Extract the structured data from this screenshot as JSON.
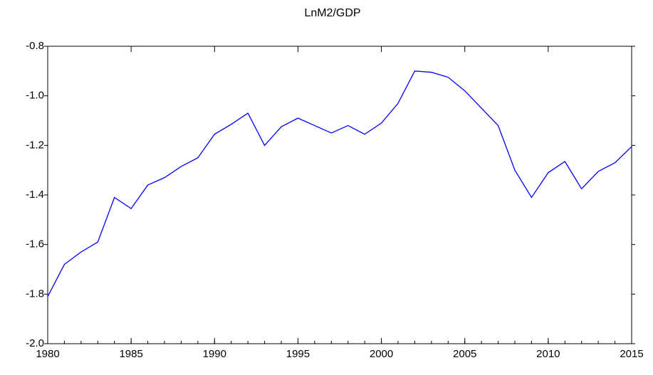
{
  "chart_data": {
    "type": "line",
    "title": "LnM2/GDP",
    "x": [
      1980,
      1981,
      1982,
      1983,
      1984,
      1985,
      1986,
      1987,
      1988,
      1989,
      1990,
      1991,
      1992,
      1993,
      1994,
      1995,
      1996,
      1997,
      1998,
      1999,
      2000,
      2001,
      2002,
      2003,
      2004,
      2005,
      2006,
      2007,
      2008,
      2009,
      2010,
      2011,
      2012,
      2013,
      2014,
      2015
    ],
    "series": [
      {
        "color": "#0000ff",
        "values": [
          -1.81,
          -1.68,
          -1.63,
          -1.59,
          -1.41,
          -1.455,
          -1.36,
          -1.33,
          -1.285,
          -1.25,
          -1.155,
          -1.115,
          -1.07,
          -1.2,
          -1.125,
          -1.09,
          -1.12,
          -1.15,
          -1.12,
          -1.155,
          -1.11,
          -1.03,
          -0.9,
          -0.905,
          -0.925,
          -0.98,
          -1.05,
          -1.12,
          -1.3,
          -1.41,
          -1.31,
          -1.265,
          -1.375,
          -1.305,
          -1.27,
          -1.205
        ]
      }
    ],
    "xlim": [
      1980,
      2015
    ],
    "xticks": [
      1980,
      1985,
      1990,
      1995,
      2000,
      2005,
      2010,
      2015
    ],
    "ylim": [
      -2.0,
      -0.8
    ],
    "yticks": [
      {
        "value": -2.0,
        "label": "-2.0"
      },
      -1.8,
      -1.6,
      -1.4,
      -1.2,
      {
        "value": -1.0,
        "label": "-1.0"
      },
      -0.8
    ],
    "grid": false
  }
}
